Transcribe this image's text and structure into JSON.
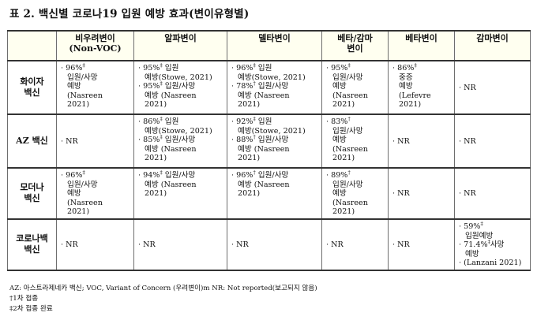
{
  "title": "표 2. 백신별 코로나19 입원 예방 효과(변이유형별)",
  "columns": [
    "비우려변이\n(Non-VOC)",
    "알파변이",
    "델타변이",
    "베타/감마\n변이",
    "베타변이",
    "감마변이"
  ],
  "rows": [
    {
      "label": "화이자\n백신",
      "cells": [
        [
          "· 96%‡",
          "입원/사망",
          "예방",
          "(Nasreen",
          "2021)"
        ],
        [
          "· 95%‡ 입원",
          "예방(Stowe, 2021)",
          "· 95%‡ 입원/사망",
          "예방  (Nasreen",
          "2021)"
        ],
        [
          "· 96%‡ 입원",
          "예방(Stowe, 2021)",
          "· 78%† 입원/사망",
          "예방  (Nasreen",
          "2021)"
        ],
        [
          "· 95%‡",
          "입원/사망",
          "예방",
          "(Nasreen",
          "2021)"
        ],
        [
          "· 86%‡",
          "중증",
          "예방",
          "(Lefevre",
          "2021)"
        ],
        [
          "· NR"
        ]
      ]
    },
    {
      "label": "AZ 백신",
      "cells": [
        [
          "· NR"
        ],
        [
          "· 86%‡ 입원",
          "예방(Stowe, 2021)",
          "· 85%‡ 입원/사망",
          "예방  (Nasreen",
          "2021)"
        ],
        [
          "· 92%‡ 입원",
          "예방(Stowe, 2021)",
          "· 88%† 입원/사망",
          "예방  (Nasreen",
          "2021)"
        ],
        [
          "· 83%†",
          "입원/사망",
          "예방",
          "(Nasreen",
          "2021)"
        ],
        [
          "· NR"
        ],
        [
          "· NR"
        ]
      ]
    },
    {
      "label": "모더나\n백신",
      "cells": [
        [
          "· 96%‡",
          "입원/사망",
          "예방",
          "(Nasreen",
          "2021)"
        ],
        [
          "· 94%‡ 입원/사망",
          "예방  (Nasreen",
          "2021)"
        ],
        [
          "· 96%†  입원/사망",
          "예방  (Nasreen",
          "2021)"
        ],
        [
          "· 89%†",
          "입원/사망",
          "예방",
          "(Nasreen",
          "2021)"
        ],
        [
          "· NR"
        ],
        [
          "· NR"
        ]
      ]
    },
    {
      "label": "코로나백\n백신",
      "cells": [
        [
          "· NR"
        ],
        [
          "· NR"
        ],
        [
          "· NR"
        ],
        [
          "· NR"
        ],
        [
          "· NR"
        ],
        [
          "· 59%‡",
          "입원예방",
          "· 71.4%‡사망",
          "예방",
          "· (Lanzani 2021)"
        ]
      ]
    }
  ],
  "footnotes": [
    "AZ: 아스트라제네카 백신; VOC, Variant of Concern (우려변이)m NR: Not reported(보고되지 않음)",
    "†1차 접종",
    "‡2차 접종 완료"
  ]
}
